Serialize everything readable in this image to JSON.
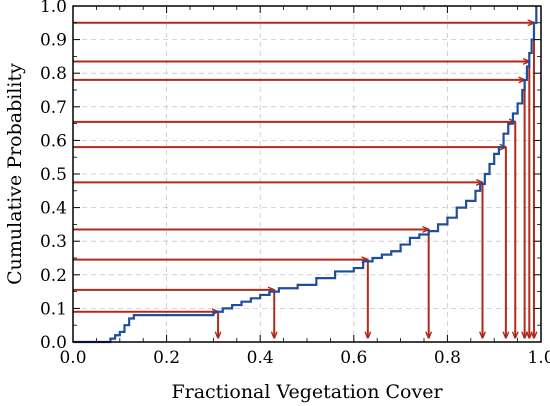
{
  "chart_data": {
    "type": "line",
    "title": "",
    "xlabel": "Fractional Vegetation Cover",
    "ylabel": "Cumulative Probability",
    "xlim": [
      0.0,
      1.0
    ],
    "ylim": [
      0.0,
      1.0
    ],
    "xticks": [
      0.0,
      0.2,
      0.4,
      0.6,
      0.8,
      1.0
    ],
    "yticks": [
      0.0,
      0.1,
      0.2,
      0.3,
      0.4,
      0.5,
      0.6,
      0.7,
      0.8,
      0.9,
      1.0
    ],
    "xtick_labels": [
      "0.0",
      "0.2",
      "0.4",
      "0.6",
      "0.8",
      "1.0"
    ],
    "ytick_labels": [
      "0.0",
      "0.1",
      "0.2",
      "0.3",
      "0.4",
      "0.5",
      "0.6",
      "0.7",
      "0.8",
      "0.9",
      "1.0"
    ],
    "grid": true,
    "colors": {
      "cdf": "#1f4e9c",
      "arrows": "#b22a1a"
    },
    "series": [
      {
        "x": [
          0.08,
          0.09,
          0.1,
          0.11,
          0.12,
          0.13,
          0.3,
          0.32,
          0.34,
          0.36,
          0.38,
          0.4,
          0.42,
          0.44,
          0.48,
          0.52,
          0.56,
          0.6,
          0.62,
          0.64,
          0.66,
          0.68,
          0.7,
          0.72,
          0.74,
          0.76,
          0.78,
          0.8,
          0.82,
          0.84,
          0.86,
          0.87,
          0.88,
          0.89,
          0.9,
          0.91,
          0.92,
          0.93,
          0.94,
          0.95,
          0.96,
          0.965,
          0.97,
          0.975,
          0.98,
          0.985,
          0.99
        ],
        "y": [
          0.01,
          0.02,
          0.03,
          0.05,
          0.07,
          0.08,
          0.09,
          0.1,
          0.11,
          0.12,
          0.13,
          0.14,
          0.15,
          0.16,
          0.17,
          0.19,
          0.21,
          0.22,
          0.24,
          0.25,
          0.26,
          0.27,
          0.29,
          0.31,
          0.32,
          0.33,
          0.35,
          0.37,
          0.4,
          0.42,
          0.45,
          0.47,
          0.5,
          0.53,
          0.56,
          0.58,
          0.62,
          0.65,
          0.68,
          0.71,
          0.75,
          0.78,
          0.82,
          0.86,
          0.9,
          0.95,
          1.0
        ]
      }
    ],
    "arrows": [
      {
        "y": 0.09,
        "x": 0.31
      },
      {
        "y": 0.155,
        "x": 0.43
      },
      {
        "y": 0.245,
        "x": 0.63
      },
      {
        "y": 0.335,
        "x": 0.76
      },
      {
        "y": 0.475,
        "x": 0.875
      },
      {
        "y": 0.58,
        "x": 0.925
      },
      {
        "y": 0.655,
        "x": 0.945
      },
      {
        "y": 0.78,
        "x": 0.965
      },
      {
        "y": 0.835,
        "x": 0.975
      },
      {
        "y": 0.95,
        "x": 0.985
      }
    ]
  }
}
